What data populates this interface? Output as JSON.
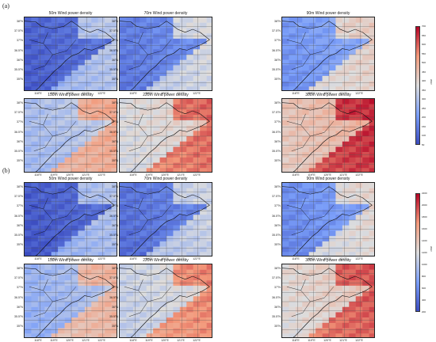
{
  "figure": {
    "labels": [
      "(a)",
      "(b)"
    ],
    "ylat_labels": [
      "38°N",
      "37.5°N",
      "37°N",
      "36.5°N",
      "36°N",
      "35.5°N",
      "35°N"
    ],
    "xlon_labels": [
      "118°E",
      "119°E",
      "120°E",
      "121°E",
      "122°E"
    ]
  },
  "chart_data": [
    {
      "type": "heatmap",
      "group": "(a)",
      "colorbar": {
        "ticks": [
          "700",
          "650",
          "600",
          "550",
          "500",
          "450",
          "400",
          "350",
          "300",
          "250",
          "200",
          "150",
          "100",
          "50"
        ],
        "unit": "W/m²",
        "range": [
          50,
          700
        ]
      },
      "panels": [
        {
          "title": "50m Wind power density",
          "level": 0.12
        },
        {
          "title": "70m Wind power density",
          "level": 0.2
        },
        {
          "title": "90m Wind power density",
          "level": 0.28
        },
        {
          "title": "150m Wind power density",
          "level": 0.42
        },
        {
          "title": "220m Wind power density",
          "level": 0.55
        },
        {
          "title": "300m Wind power density",
          "level": 0.65
        }
      ],
      "colors": {
        "low": "#3b4cc0",
        "mid": "#dddddd",
        "high": "#b40426"
      }
    },
    {
      "type": "heatmap",
      "group": "(b)",
      "colorbar": {
        "ticks": [
          "2200",
          "2000",
          "1800",
          "1600",
          "1400",
          "1200",
          "1000",
          "800",
          "600",
          "400",
          "200"
        ],
        "unit": "W/m²",
        "range": [
          200,
          2200
        ]
      },
      "panels": [
        {
          "title": "50m Wind power density",
          "level": 0.1
        },
        {
          "title": "70m Wind power density",
          "level": 0.17
        },
        {
          "title": "90m Wind power density",
          "level": 0.25
        },
        {
          "title": "150m Wind power density",
          "level": 0.38
        },
        {
          "title": "220m Wind power density",
          "level": 0.5
        },
        {
          "title": "300m Wind power density",
          "level": 0.58
        }
      ],
      "colors": {
        "low": "#3b4cc0",
        "mid": "#dddddd",
        "high": "#b40426"
      }
    }
  ]
}
